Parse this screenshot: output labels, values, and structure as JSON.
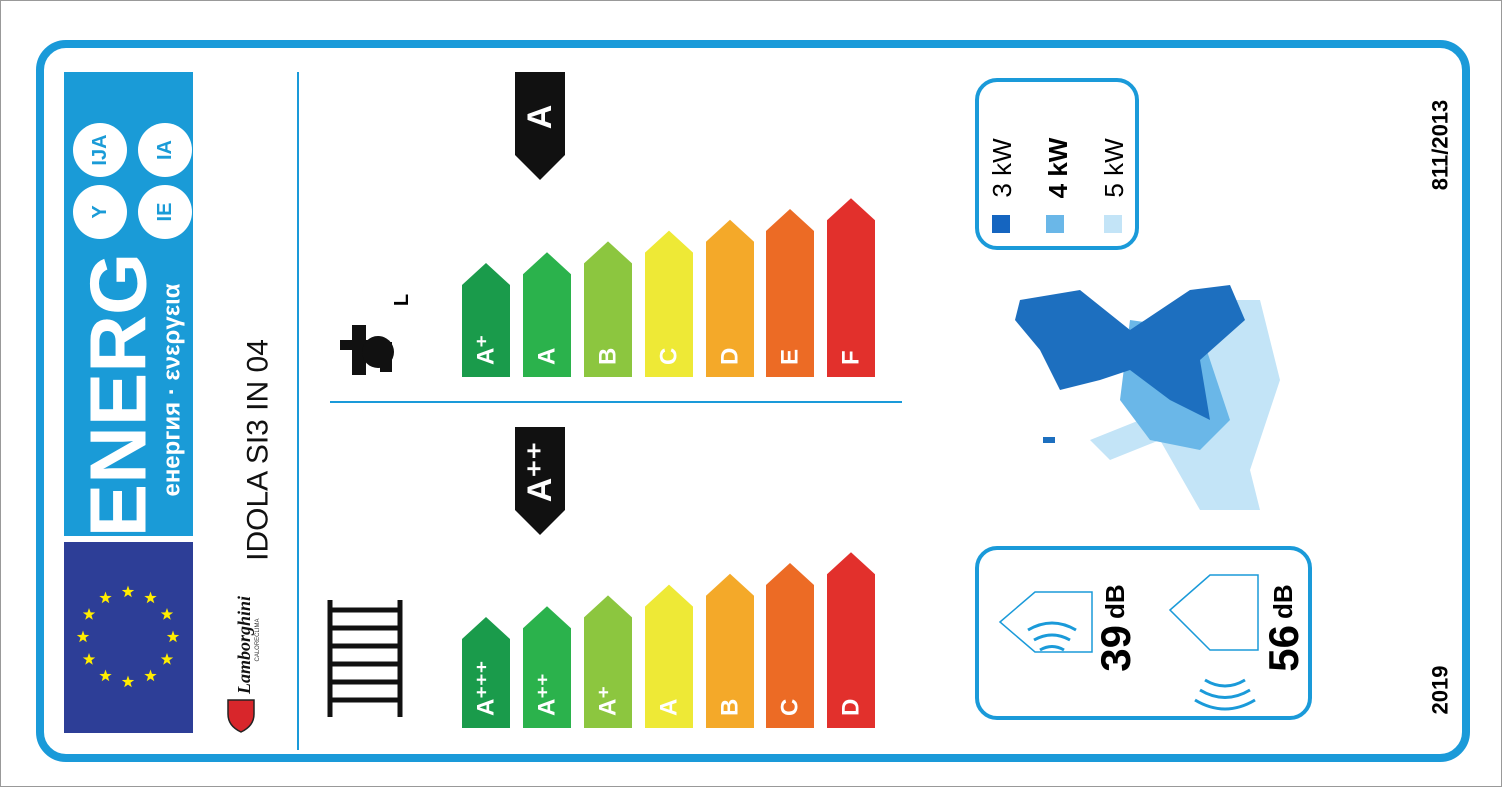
{
  "header": {
    "energy": "ENERG",
    "subtitle": "енергия · ενεργεια",
    "badges": [
      "Y",
      "IJA",
      "IE",
      "IA"
    ]
  },
  "supplier": {
    "brand": "Lamborghini",
    "sub": "CALORECLIMA",
    "model": "IDOLA SI3 IN 04"
  },
  "water_heating": {
    "profile": "L",
    "rating": "A",
    "classes": [
      "A⁺",
      "A",
      "B",
      "C",
      "D",
      "E",
      "F"
    ]
  },
  "space_heating": {
    "rating": "A⁺⁺",
    "classes": [
      "A⁺⁺⁺",
      "A⁺⁺",
      "A⁺",
      "A",
      "B",
      "C",
      "D"
    ]
  },
  "power": [
    "3 kW",
    "4 kW",
    "5 kW"
  ],
  "sound": {
    "indoor": {
      "value": "39",
      "unit": "dB"
    },
    "outdoor": {
      "value": "56",
      "unit": "dB"
    }
  },
  "year": "2019",
  "regulation": "811/2013"
}
